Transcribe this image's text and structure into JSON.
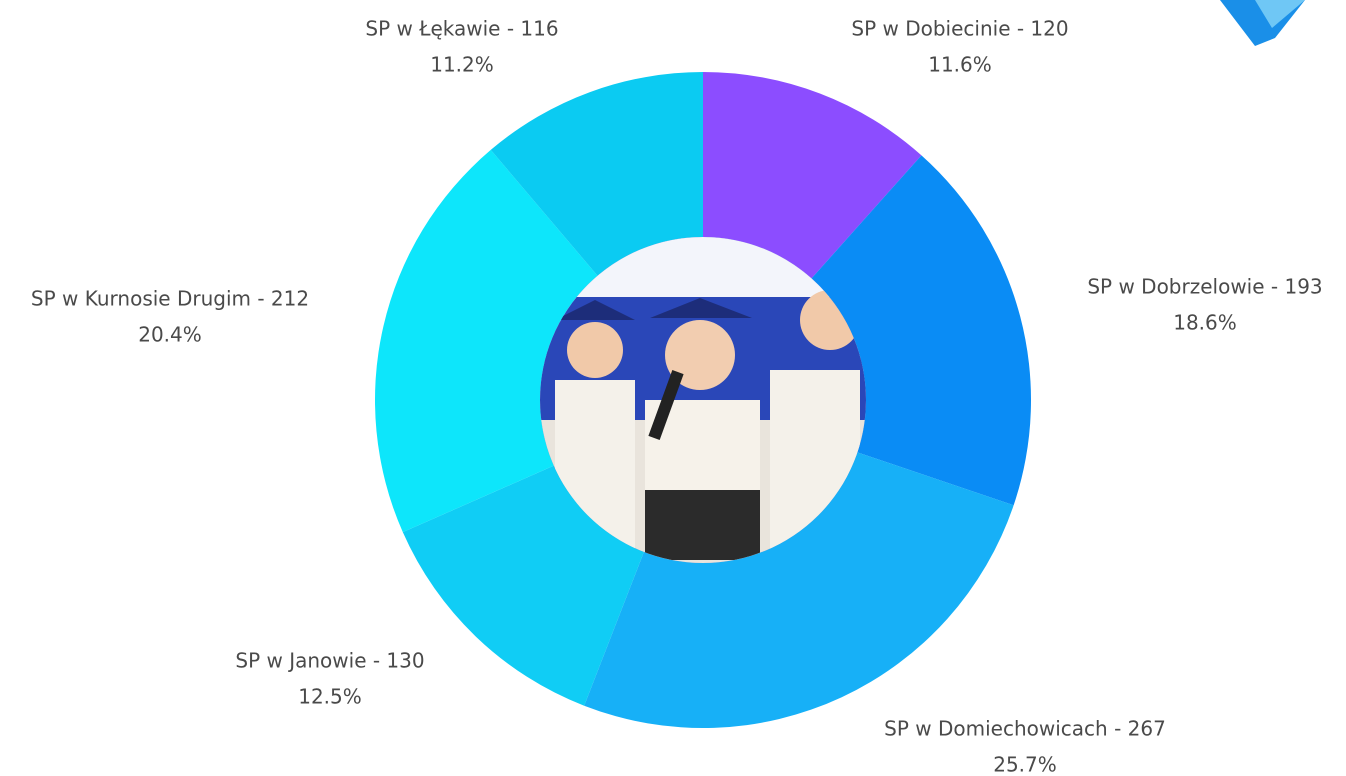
{
  "chart_data": {
    "type": "donut",
    "categories": [
      "SP w Dobiecinie - 120",
      "SP w Dobrzelowie - 193",
      "SP w Domiechowicach - 267",
      "SP w Janowie - 130",
      "SP w Kurnosie Drugim - 212",
      "SP w Łękawie - 116"
    ],
    "values": [
      11.6,
      18.6,
      25.7,
      12.5,
      20.4,
      11.2
    ],
    "value_labels": [
      "11.6%",
      "18.6%",
      "25.7%",
      "12.5%",
      "20.4%",
      "11.2%"
    ],
    "colors": [
      "#8c4dff",
      "#0a8cf5",
      "#17b0f7",
      "#10cdf5",
      "#0de6fb",
      "#0bcbf2"
    ]
  }
}
